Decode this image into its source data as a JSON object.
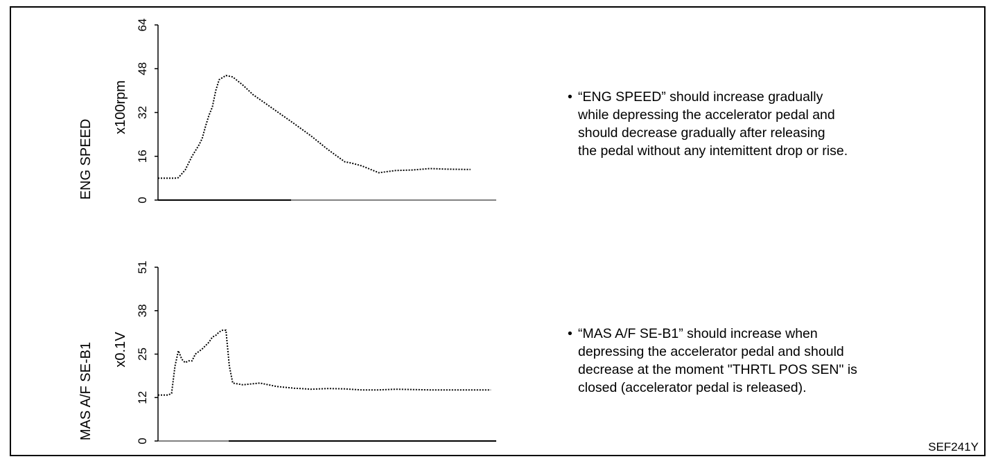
{
  "code": "SEF241Y",
  "notes": [
    {
      "bullet": "•",
      "lines": [
        "“ENG SPEED” should increase gradually",
        "while depressing the accelerator pedal and",
        "should decrease gradually after releasing",
        "the pedal without any intemittent drop or rise."
      ]
    },
    {
      "bullet": "•",
      "lines": [
        "“MAS A/F SE-B1” should increase when",
        "depressing the accelerator pedal and  should",
        "decrease at the moment \"THRTL POS SEN\" is",
        "closed (accelerator pedal is released)."
      ]
    }
  ],
  "chart_data": [
    {
      "type": "line",
      "ylabel": "ENG SPEED",
      "unit": "x100rpm",
      "ylim": [
        0,
        64
      ],
      "yticks": [
        "0",
        "16",
        "32",
        "48",
        "64"
      ],
      "grid": false,
      "series": [
        {
          "line_style": "dotted",
          "x": [
            0,
            5,
            6,
            8,
            10,
            12,
            13,
            14,
            15,
            16,
            17,
            18,
            20,
            22,
            25,
            28,
            32,
            36,
            40,
            45,
            50,
            55,
            57,
            60,
            62,
            65,
            70,
            75,
            80,
            85,
            90,
            92
          ],
          "y": [
            8,
            8,
            8.2,
            11,
            16,
            20,
            22.5,
            27,
            31,
            34,
            40,
            44,
            45.5,
            45,
            42,
            38.5,
            35,
            31.5,
            28,
            23.5,
            18.5,
            14,
            13.5,
            12.5,
            11.5,
            10,
            10.8,
            11,
            11.5,
            11.3,
            11.2,
            11.2
          ]
        }
      ]
    },
    {
      "type": "line",
      "ylabel": "MAS A/F SE-B1",
      "unit": "x0.1V",
      "ylim": [
        0,
        51
      ],
      "yticks": [
        "0",
        "12",
        "25",
        "38",
        "51"
      ],
      "grid": false,
      "series": [
        {
          "line_style": "dotted",
          "x": [
            0,
            3,
            4,
            5,
            6,
            7,
            8,
            9,
            10,
            11,
            13,
            15,
            16,
            17,
            18,
            19,
            20,
            21,
            22,
            25,
            30,
            35,
            40,
            45,
            50,
            55,
            60,
            65,
            70,
            75,
            80,
            90,
            98
          ],
          "y": [
            13.5,
            13.5,
            14,
            22,
            26.5,
            24,
            23,
            23.5,
            23.5,
            25.5,
            27,
            29,
            30.5,
            31,
            32,
            32.5,
            32.5,
            22,
            17,
            16.5,
            17,
            16,
            15.5,
            15.2,
            15.4,
            15.3,
            15,
            15,
            15.2,
            15.1,
            15,
            15,
            15
          ]
        }
      ]
    }
  ]
}
